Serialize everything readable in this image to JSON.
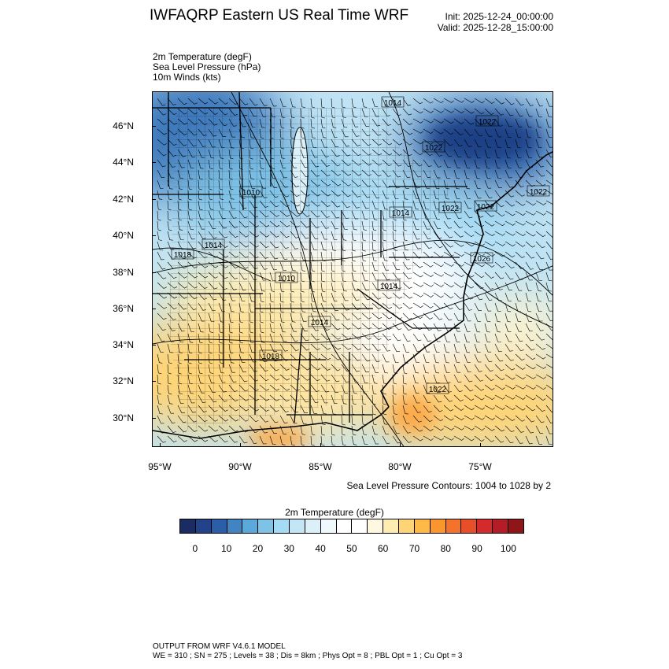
{
  "header": {
    "title": "IWFAQRP Eastern US Real Time WRF",
    "init": "Init: 2025-12-24_00:00:00",
    "valid": "Valid: 2025-12-28_15:00:00"
  },
  "fields": [
    "2m Temperature   (degF)",
    "Sea Level Pressure   (hPa)",
    "10m Winds   (kts)"
  ],
  "map": {
    "lat_labels": [
      "46°N",
      "44°N",
      "42°N",
      "40°N",
      "38°N",
      "36°N",
      "34°N",
      "32°N",
      "30°N"
    ],
    "lon_labels": [
      "95°W",
      "90°W",
      "85°W",
      "80°W",
      "75°W"
    ],
    "pressure_labels": [
      "1014",
      "1022",
      "1022",
      "1022",
      "1010",
      "1014",
      "1022",
      "1022",
      "1014",
      "1018",
      "1026",
      "1010",
      "1014",
      "1014",
      "1018",
      "1022"
    ]
  },
  "slp_note": "Sea Level Pressure Contours: 1004 to 1028 by 2",
  "colorbar": {
    "title": "2m Temperature  (degF)",
    "labels": [
      "0",
      "10",
      "20",
      "30",
      "40",
      "50",
      "60",
      "70",
      "80",
      "90",
      "100"
    ],
    "colors": [
      "#1b2c63",
      "#22428a",
      "#2b5ea8",
      "#4283c2",
      "#5ba9da",
      "#7ec2e6",
      "#a3dbf5",
      "#c2e6f5",
      "#dbf0f8",
      "#eff8fc",
      "#ffffff",
      "#ffffff",
      "#fff8e0",
      "#feecb0",
      "#fed477",
      "#feb947",
      "#fb962f",
      "#f4722b",
      "#e74f2b",
      "#d42a2b",
      "#b41d26",
      "#8e1618"
    ]
  },
  "footer": {
    "line1": "OUTPUT FROM WRF V4.6.1 MODEL",
    "line2": "WE = 310 ; SN = 275 ; Levels = 38 ; Dis = 8km ; Phys Opt = 8 ; PBL Opt = 1 ; Cu Opt = 3"
  }
}
